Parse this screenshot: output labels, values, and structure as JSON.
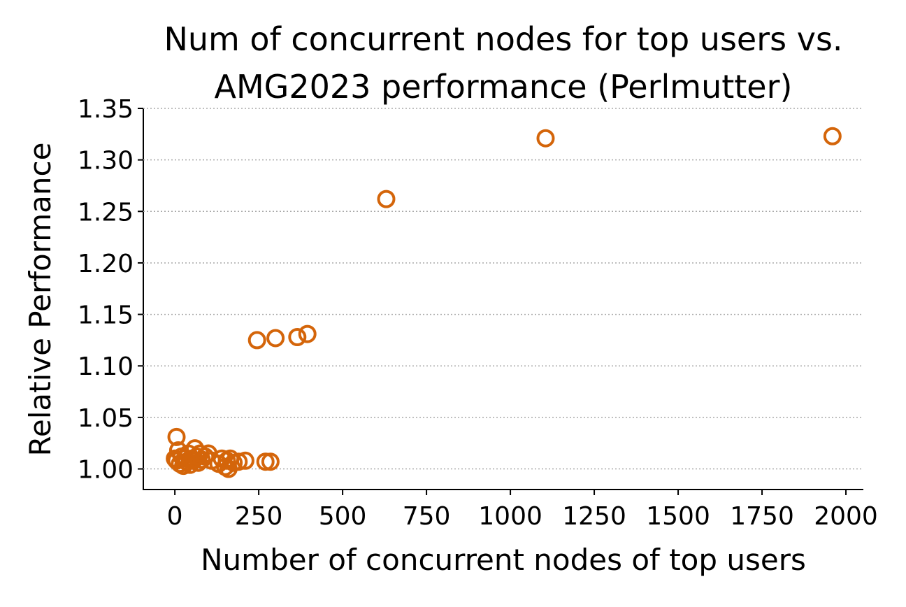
{
  "chart_data": {
    "type": "scatter",
    "title": [
      "Num of concurrent nodes for top users vs.",
      "AMG2023 performance (Perlmutter)"
    ],
    "x_label": "Number of concurrent nodes of top users",
    "y_label": "Relative Performance",
    "series": [
      {
        "color": "#d4650a",
        "x": [
          630,
          1105,
          1960,
          245,
          300,
          365,
          395,
          5,
          0,
          5,
          10,
          15,
          20,
          25,
          30,
          35,
          40,
          45,
          50,
          55,
          60,
          65,
          70,
          75,
          80,
          90,
          100,
          110,
          130,
          140,
          150,
          155,
          160,
          165,
          175,
          190,
          210,
          270,
          285
        ],
        "values": [
          1.262,
          1.321,
          1.323,
          1.125,
          1.127,
          1.128,
          1.131,
          1.031,
          1.01,
          1.008,
          1.018,
          1.005,
          1.012,
          1.003,
          1.01,
          1.007,
          1.015,
          1.004,
          1.01,
          1.008,
          1.02,
          1.012,
          1.006,
          1.015,
          1.009,
          1.012,
          1.015,
          1.008,
          1.005,
          1.01,
          1.002,
          1.008,
          1.0,
          1.01,
          1.006,
          1.007,
          1.008,
          1.007,
          1.007
        ]
      }
    ],
    "xlim": [
      -94,
      2052
    ],
    "ylim": [
      0.98,
      1.35
    ],
    "xticks": [
      0,
      250,
      500,
      750,
      1000,
      1250,
      1500,
      1750,
      2000
    ],
    "yticks": [
      {
        "value": 1.0,
        "label": "1.00"
      },
      {
        "value": 1.05,
        "label": "1.05"
      },
      {
        "value": 1.1,
        "label": "1.10"
      },
      {
        "value": 1.15,
        "label": "1.15"
      },
      {
        "value": 1.2,
        "label": "1.20"
      },
      {
        "value": 1.25,
        "label": "1.25"
      },
      {
        "value": 1.3,
        "label": "1.30"
      },
      {
        "value": 1.35,
        "label": "1.35"
      }
    ],
    "grid": true
  }
}
